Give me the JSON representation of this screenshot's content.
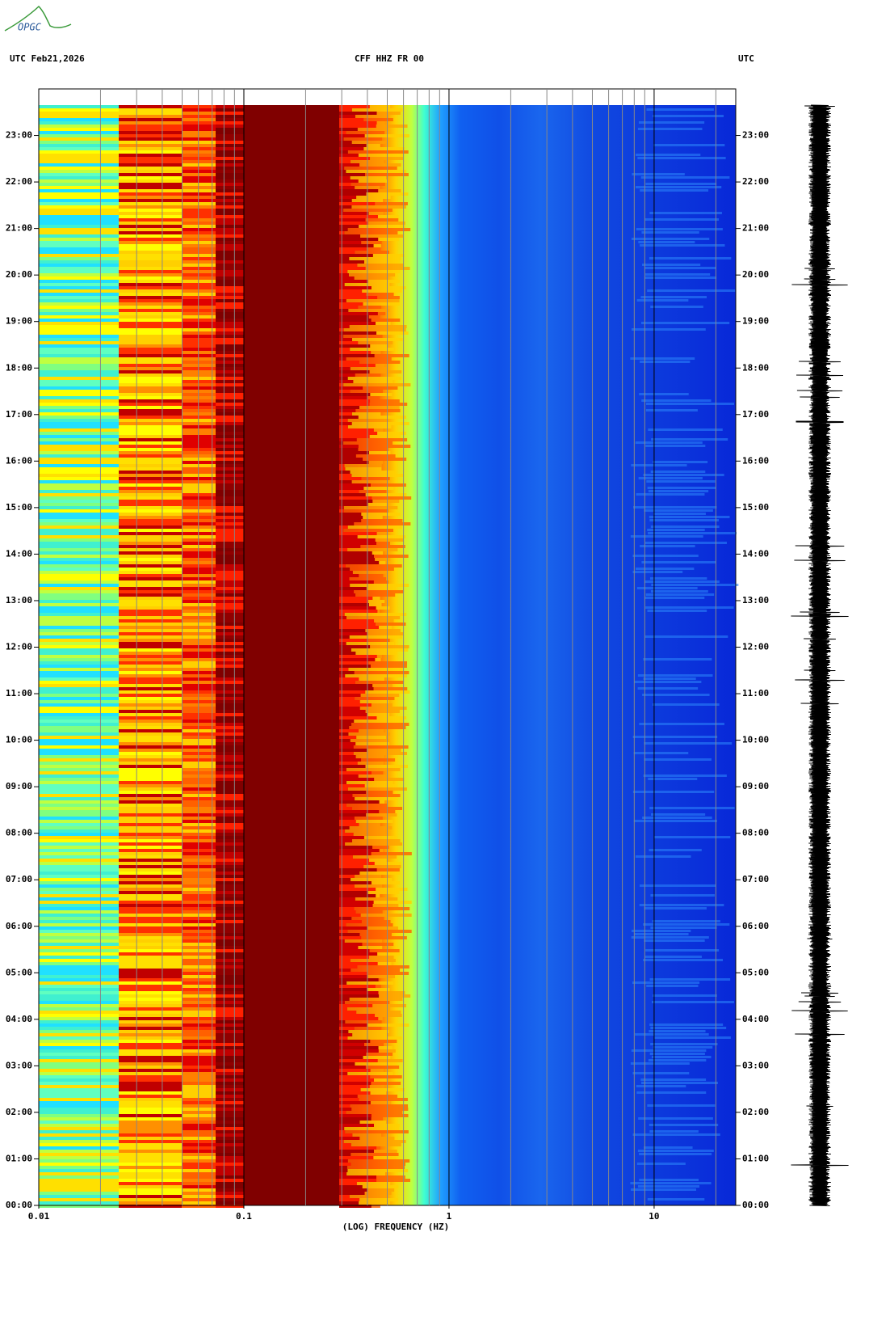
{
  "logo": "OPGC",
  "chart_data": {
    "type": "spectrogram",
    "header_left": "UTC  Feb21,2026",
    "title": "CFF HHZ FR 00",
    "header_right": "UTC",
    "xlabel": "(LOG) FREQUENCY (HZ)",
    "xscale": "log",
    "xlim": [
      0.01,
      25
    ],
    "xticks": [
      0.01,
      0.1,
      1,
      10
    ],
    "xminorticks": [
      0.02,
      0.03,
      0.04,
      0.05,
      0.06,
      0.07,
      0.08,
      0.09,
      0.2,
      0.3,
      0.4,
      0.5,
      0.6,
      0.7,
      0.8,
      0.9,
      2,
      3,
      4,
      5,
      6,
      7,
      8,
      9,
      20
    ],
    "ylim": [
      0,
      24
    ],
    "yticks": [
      {
        "value": 0,
        "label": "00:00"
      },
      {
        "value": 1,
        "label": "01:00"
      },
      {
        "value": 2,
        "label": "02:00"
      },
      {
        "value": 3,
        "label": "03:00"
      },
      {
        "value": 4,
        "label": "04:00"
      },
      {
        "value": 5,
        "label": "05:00"
      },
      {
        "value": 6,
        "label": "06:00"
      },
      {
        "value": 7,
        "label": "07:00"
      },
      {
        "value": 8,
        "label": "08:00"
      },
      {
        "value": 9,
        "label": "09:00"
      },
      {
        "value": 10,
        "label": "10:00"
      },
      {
        "value": 11,
        "label": "11:00"
      },
      {
        "value": 12,
        "label": "12:00"
      },
      {
        "value": 13,
        "label": "13:00"
      },
      {
        "value": 14,
        "label": "14:00"
      },
      {
        "value": 15,
        "label": "15:00"
      },
      {
        "value": 16,
        "label": "16:00"
      },
      {
        "value": 17,
        "label": "17:00"
      },
      {
        "value": 18,
        "label": "18:00"
      },
      {
        "value": 19,
        "label": "19:00"
      },
      {
        "value": 20,
        "label": "20:00"
      },
      {
        "value": 21,
        "label": "21:00"
      },
      {
        "value": 22,
        "label": "22:00"
      },
      {
        "value": 23,
        "label": "23:00"
      }
    ]
  }
}
